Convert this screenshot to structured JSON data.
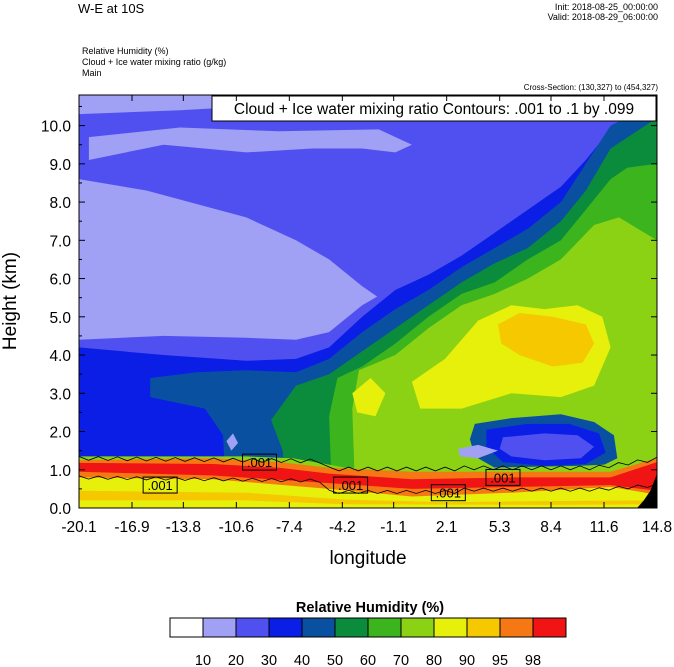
{
  "header": {
    "title": "W-E at 10S",
    "init": "Init: 2018-08-25_00:00:00",
    "valid": "Valid: 2018-08-29_06:00:00",
    "fields": [
      "Relative Humidity   (%)",
      "Cloud + Ice water mixing ratio   (g/kg)",
      "Main"
    ],
    "cross_section": "Cross-Section: (130,327) to (454,327)"
  },
  "chart_data": {
    "type": "heatmap",
    "title": "W-E at 10S",
    "contour_info": "Cloud + Ice water mixing ratio Contours: .001 to .1 by .099",
    "xlabel": "longitude",
    "ylabel": "Height (km)",
    "xlim": [
      -20.1,
      14.8
    ],
    "ylim": [
      0,
      10.8
    ],
    "x_ticks": [
      -20.1,
      -16.9,
      -13.8,
      -10.6,
      -7.4,
      -4.2,
      -1.1,
      2.1,
      5.3,
      8.4,
      11.6,
      14.8
    ],
    "x_tick_labels": [
      "-20.1",
      "-16.9",
      "-13.8",
      "-10.6",
      "-7.4",
      "-4.2",
      "-1.1",
      "2.1",
      "5.3",
      "8.4",
      "11.6",
      "14.8"
    ],
    "y_ticks": [
      0,
      1,
      2,
      3,
      4,
      5,
      6,
      7,
      8,
      9,
      10
    ],
    "y_tick_labels": [
      "0.0",
      "1.0",
      "2.0",
      "3.0",
      "4.0",
      "5.0",
      "6.0",
      "7.0",
      "8.0",
      "9.0",
      "10.0"
    ],
    "colorbar": {
      "title": "Relative Humidity  (%)",
      "levels": [
        "10",
        "20",
        "30",
        "40",
        "50",
        "60",
        "70",
        "80",
        "90",
        "95",
        "98"
      ],
      "colors": [
        "#ffffff",
        "#a0a0f5",
        "#5050f0",
        "#0a1ee6",
        "#0a50a0",
        "#0a8c3c",
        "#3cb41e",
        "#8cd214",
        "#e6f00a",
        "#f5c800",
        "#f57814",
        "#f01414"
      ]
    },
    "contour_labels": [
      {
        "text": ".001",
        "x": -9.2,
        "y": 1.2
      },
      {
        "text": ".001",
        "x": -15.2,
        "y": 0.6
      },
      {
        "text": ".001",
        "x": -3.7,
        "y": 0.6
      },
      {
        "text": ".001",
        "x": 2.2,
        "y": 0.4
      },
      {
        "text": ".001",
        "x": 5.5,
        "y": 0.8
      }
    ],
    "rh_regions": [
      {
        "level": 20,
        "pts": [
          [
            -20.1,
            10.8
          ],
          [
            14.8,
            10.8
          ],
          [
            14.8,
            3.5
          ],
          [
            -20.1,
            3.5
          ]
        ]
      },
      {
        "level": 10,
        "pts": [
          [
            -20.1,
            10.3
          ],
          [
            -14,
            10.4
          ],
          [
            -8,
            10.55
          ],
          [
            -3,
            10.5
          ],
          [
            -2.5,
            10.8
          ],
          [
            -20.1,
            10.8
          ]
        ]
      },
      {
        "level": 10,
        "pts": [
          [
            -19.5,
            9.1
          ],
          [
            -15,
            9.5
          ],
          [
            -10,
            9.3
          ],
          [
            -6,
            9.4
          ],
          [
            -3,
            9.4
          ],
          [
            -1,
            9.3
          ],
          [
            0,
            9.5
          ],
          [
            -2,
            9.9
          ],
          [
            -8,
            9.85
          ],
          [
            -14,
            9.95
          ],
          [
            -19.5,
            9.7
          ]
        ]
      },
      {
        "level": 10,
        "pts": [
          [
            -20.1,
            8.6
          ],
          [
            -16,
            8.3
          ],
          [
            -10,
            7.6
          ],
          [
            -7,
            7.0
          ],
          [
            -5,
            6.5
          ],
          [
            -3,
            5.8
          ],
          [
            -1,
            5.2
          ],
          [
            1,
            4.8
          ],
          [
            3,
            4.5
          ],
          [
            5,
            4.2
          ],
          [
            7,
            4.0
          ],
          [
            8,
            3.8
          ],
          [
            8,
            3.5
          ],
          [
            -20.1,
            3.5
          ]
        ]
      },
      {
        "level": 20,
        "pts": [
          [
            -20.1,
            4.4
          ],
          [
            -15,
            4.5
          ],
          [
            -10,
            4.45
          ],
          [
            -7,
            4.4
          ],
          [
            -5,
            4.6
          ],
          [
            -3,
            5.3
          ],
          [
            -1,
            5.8
          ],
          [
            1,
            6.3
          ],
          [
            3,
            6.8
          ],
          [
            5,
            7.4
          ],
          [
            7,
            8.0
          ],
          [
            9,
            8.6
          ],
          [
            10.5,
            9.2
          ],
          [
            12,
            9.5
          ],
          [
            14.8,
            9.4
          ],
          [
            14.8,
            0
          ],
          [
            -20.1,
            0
          ]
        ]
      },
      {
        "level": 30,
        "pts": [
          [
            -20.1,
            4.2
          ],
          [
            -15,
            4.0
          ],
          [
            -10,
            3.85
          ],
          [
            -7,
            3.9
          ],
          [
            -5,
            4.2
          ],
          [
            -3,
            5.0
          ],
          [
            -1,
            5.7
          ],
          [
            1,
            6.1
          ],
          [
            3,
            6.6
          ],
          [
            5,
            7.2
          ],
          [
            7,
            7.8
          ],
          [
            9,
            8.4
          ],
          [
            10.5,
            9.1
          ],
          [
            12,
            9.9
          ],
          [
            14.8,
            10.5
          ],
          [
            14.8,
            0
          ],
          [
            -20.1,
            0
          ]
        ]
      },
      {
        "level": 40,
        "pts": [
          [
            -15.8,
            3.4
          ],
          [
            -13,
            3.55
          ],
          [
            -10,
            3.6
          ],
          [
            -7,
            3.55
          ],
          [
            -5,
            3.9
          ],
          [
            -3,
            4.6
          ],
          [
            -1,
            5.2
          ],
          [
            1,
            5.7
          ],
          [
            3,
            6.3
          ],
          [
            5,
            6.8
          ],
          [
            7,
            7.3
          ],
          [
            9,
            8.0
          ],
          [
            10.5,
            9.0
          ],
          [
            12,
            10.0
          ],
          [
            14.8,
            10.6
          ],
          [
            14.8,
            0
          ],
          [
            -11.2,
            0
          ],
          [
            -11.4,
            1.9
          ],
          [
            -12.5,
            2.6
          ],
          [
            -15.8,
            2.9
          ]
        ]
      },
      {
        "level": 50,
        "pts": [
          [
            -7,
            3.2
          ],
          [
            -5,
            3.5
          ],
          [
            -3,
            4.1
          ],
          [
            -1,
            4.7
          ],
          [
            1,
            5.3
          ],
          [
            3,
            5.9
          ],
          [
            5,
            6.4
          ],
          [
            7,
            6.8
          ],
          [
            9,
            7.5
          ],
          [
            10.5,
            8.3
          ],
          [
            12,
            9.4
          ],
          [
            14.8,
            10.2
          ],
          [
            14.8,
            0
          ],
          [
            -7.5,
            0
          ],
          [
            -7.8,
            1.5
          ],
          [
            -8.5,
            2.3
          ]
        ]
      },
      {
        "level": 60,
        "pts": [
          [
            -4.5,
            3.4
          ],
          [
            -3,
            3.7
          ],
          [
            -1,
            4.3
          ],
          [
            1,
            5.0
          ],
          [
            3,
            5.6
          ],
          [
            5,
            5.9
          ],
          [
            7,
            6.5
          ],
          [
            9,
            7.0
          ],
          [
            10.5,
            7.8
          ],
          [
            12,
            8.6
          ],
          [
            13,
            8.9
          ],
          [
            14.8,
            9.0
          ],
          [
            14.8,
            0
          ],
          [
            -4.8,
            0
          ],
          [
            -5.0,
            2.4
          ]
        ]
      },
      {
        "level": 70,
        "pts": [
          [
            -3.2,
            3.6
          ],
          [
            -1,
            4.0
          ],
          [
            1,
            4.7
          ],
          [
            3,
            5.3
          ],
          [
            5,
            5.6
          ],
          [
            7,
            6.0
          ],
          [
            9,
            6.5
          ],
          [
            11,
            7.4
          ],
          [
            12.5,
            7.6
          ],
          [
            14.8,
            7.0
          ],
          [
            14.8,
            0
          ],
          [
            -3.4,
            0
          ],
          [
            -3.6,
            2.6
          ]
        ]
      },
      {
        "level": 80,
        "pts": [
          [
            0,
            3.3
          ],
          [
            2,
            3.9
          ],
          [
            4,
            4.9
          ],
          [
            6,
            5.3
          ],
          [
            8,
            5.2
          ],
          [
            10,
            5.3
          ],
          [
            11.5,
            5.0
          ],
          [
            12,
            4.2
          ],
          [
            11,
            3.2
          ],
          [
            9,
            2.9
          ],
          [
            6,
            3.0
          ],
          [
            3,
            2.6
          ],
          [
            0.5,
            2.6
          ]
        ]
      },
      {
        "level": 80,
        "pts": [
          [
            -3.6,
            3.0
          ],
          [
            -2.5,
            3.4
          ],
          [
            -1.6,
            3.0
          ],
          [
            -2.2,
            2.4
          ],
          [
            -3.3,
            2.5
          ]
        ]
      },
      {
        "level": 90,
        "pts": [
          [
            5.2,
            4.8
          ],
          [
            6.5,
            5.1
          ],
          [
            8.5,
            5.0
          ],
          [
            10.5,
            4.8
          ],
          [
            11.0,
            4.3
          ],
          [
            10.3,
            3.8
          ],
          [
            8.5,
            3.7
          ],
          [
            6.5,
            4.0
          ],
          [
            5.4,
            4.3
          ]
        ]
      },
      {
        "level": 40,
        "pts": [
          [
            3.8,
            2.2
          ],
          [
            6,
            2.35
          ],
          [
            9,
            2.45
          ],
          [
            11,
            2.25
          ],
          [
            12.2,
            1.9
          ],
          [
            12.4,
            1.3
          ],
          [
            11,
            1.0
          ],
          [
            8,
            0.95
          ],
          [
            5,
            1.05
          ],
          [
            3.8,
            1.35
          ],
          [
            3.5,
            1.8
          ]
        ]
      },
      {
        "level": 30,
        "pts": [
          [
            4.5,
            2.05
          ],
          [
            7,
            2.2
          ],
          [
            9.5,
            2.2
          ],
          [
            11.3,
            1.95
          ],
          [
            11.7,
            1.45
          ],
          [
            10.5,
            1.15
          ],
          [
            8,
            1.1
          ],
          [
            5.5,
            1.2
          ],
          [
            4.5,
            1.6
          ]
        ]
      },
      {
        "level": 20,
        "pts": [
          [
            5.5,
            1.85
          ],
          [
            8,
            1.95
          ],
          [
            10,
            1.9
          ],
          [
            11.0,
            1.6
          ],
          [
            10.2,
            1.3
          ],
          [
            8,
            1.25
          ],
          [
            6,
            1.35
          ],
          [
            5.3,
            1.55
          ]
        ]
      },
      {
        "level": 10,
        "pts": [
          [
            -11.2,
            1.75
          ],
          [
            -10.8,
            1.95
          ],
          [
            -10.5,
            1.7
          ],
          [
            -10.9,
            1.5
          ]
        ]
      },
      {
        "level": 10,
        "pts": [
          [
            2.8,
            1.55
          ],
          [
            4,
            1.65
          ],
          [
            5.2,
            1.5
          ],
          [
            4,
            1.3
          ],
          [
            2.9,
            1.35
          ]
        ]
      },
      {
        "level": 70,
        "pts": [
          [
            -20.1,
            1.35
          ],
          [
            -10,
            1.35
          ],
          [
            -7.2,
            1.3
          ],
          [
            -4.8,
            1.12
          ],
          [
            -4,
            1.05
          ],
          [
            4,
            1.05
          ],
          [
            10,
            1.1
          ],
          [
            12.5,
            1.15
          ],
          [
            14.8,
            1.45
          ],
          [
            14.8,
            0
          ],
          [
            -20.1,
            0
          ]
        ]
      },
      {
        "level": 80,
        "pts": [
          [
            -20.1,
            1.1
          ],
          [
            -10,
            1.15
          ],
          [
            -5,
            1.0
          ],
          [
            0,
            0.85
          ],
          [
            6,
            0.95
          ],
          [
            12,
            0.9
          ],
          [
            14.8,
            1.2
          ],
          [
            14.8,
            0
          ],
          [
            -20.1,
            0
          ]
        ]
      },
      {
        "level": 95,
        "pts": [
          [
            -20.1,
            1.25
          ],
          [
            -12,
            1.3
          ],
          [
            -8,
            1.2
          ],
          [
            -5,
            1.05
          ],
          [
            0,
            0.95
          ],
          [
            6,
            0.95
          ],
          [
            12,
            0.95
          ],
          [
            14.8,
            1.3
          ],
          [
            14.8,
            0.35
          ],
          [
            12,
            0.55
          ],
          [
            6,
            0.4
          ],
          [
            0,
            0.3
          ],
          [
            -5,
            0.5
          ],
          [
            -12,
            0.75
          ],
          [
            -20.1,
            0.8
          ]
        ]
      },
      {
        "level": 98,
        "pts": [
          [
            -20.1,
            1.18
          ],
          [
            -12,
            1.15
          ],
          [
            -8,
            1.05
          ],
          [
            -5,
            0.9
          ],
          [
            0,
            0.75
          ],
          [
            6,
            0.8
          ],
          [
            12,
            0.8
          ],
          [
            14.8,
            1.2
          ],
          [
            14.8,
            0.45
          ],
          [
            12,
            0.6
          ],
          [
            6,
            0.55
          ],
          [
            0,
            0.5
          ],
          [
            -5,
            0.65
          ],
          [
            -12,
            0.85
          ],
          [
            -20.1,
            0.95
          ]
        ]
      },
      {
        "level": 90,
        "pts": [
          [
            -20.1,
            0.45
          ],
          [
            -10,
            0.4
          ],
          [
            -4,
            0.22
          ],
          [
            2,
            0.15
          ],
          [
            8,
            0.18
          ],
          [
            14.8,
            0.2
          ],
          [
            14.8,
            0
          ],
          [
            -20.1,
            0
          ]
        ]
      },
      {
        "level": 80,
        "pts": [
          [
            -20.1,
            0.2
          ],
          [
            -10,
            0.2
          ],
          [
            -4,
            0.1
          ],
          [
            8,
            0.08
          ],
          [
            14.8,
            0.1
          ],
          [
            14.8,
            0
          ],
          [
            -20.1,
            0
          ]
        ]
      }
    ],
    "terrain": [
      [
        14.8,
        0.0
      ],
      [
        14.8,
        0.9
      ],
      [
        14.4,
        0.45
      ],
      [
        14.0,
        0.2
      ],
      [
        13.6,
        0.0
      ]
    ]
  }
}
